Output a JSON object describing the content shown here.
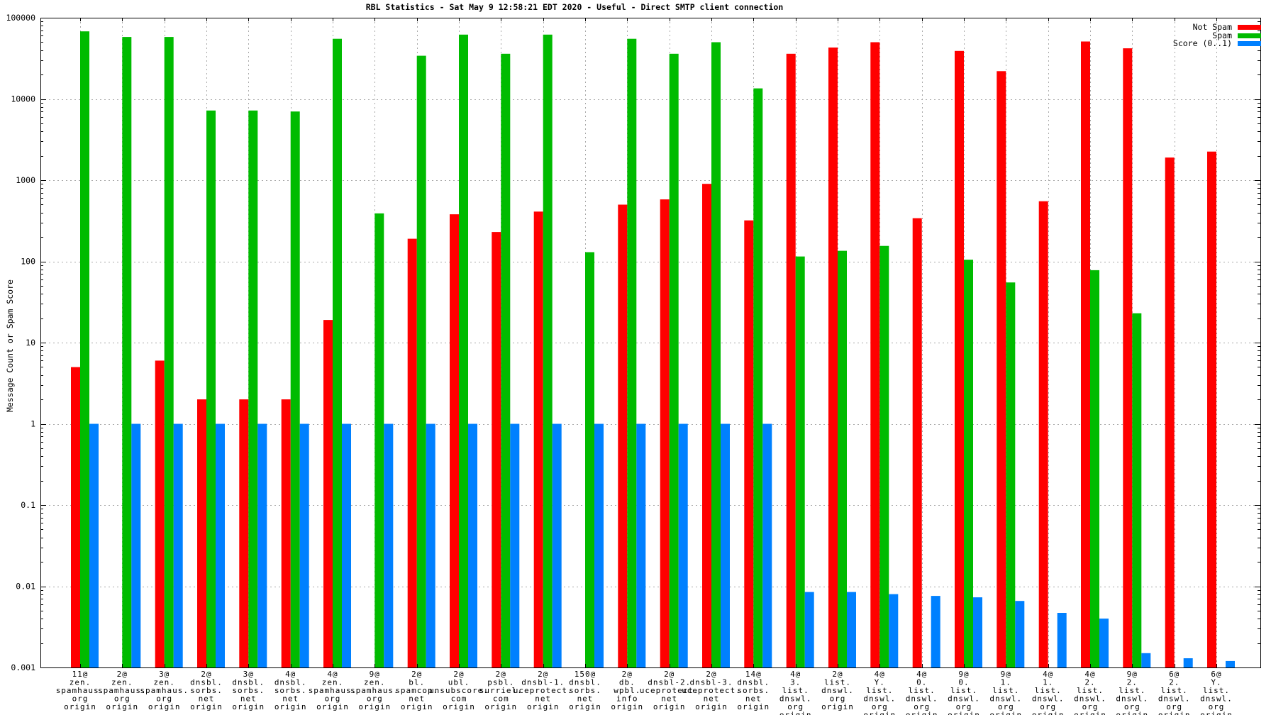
{
  "title": "RBL Statistics - Sat May  9 12:58:21 EDT 2020 - Useful - Direct SMTP client connection",
  "ylabel": "Message Count or Spam Score",
  "legend": {
    "not_spam": "Not Spam",
    "spam": "Spam",
    "score": "Score (0..1)"
  },
  "colors": {
    "not_spam": "#ff0000",
    "spam": "#00bb00",
    "score": "#0080ff",
    "grid": "#a8a8a8",
    "axis": "#000000"
  },
  "chart_data": {
    "type": "bar",
    "scale": "log",
    "ylim": [
      0.001,
      100000
    ],
    "grid": true,
    "legend_position": "top-right",
    "ytick_values": [
      100000,
      10000,
      1000,
      100,
      10,
      1,
      0.1,
      0.01,
      0.001
    ],
    "ytick_labels": [
      "100000",
      "10000",
      "1000",
      "100",
      "10",
      "1",
      "0.1",
      "0.01",
      "0.001"
    ],
    "series_names": [
      "Not Spam",
      "Spam",
      "Score (0..1)"
    ],
    "groups": [
      {
        "label": [
          "11@",
          "zen.",
          "spamhaus.",
          "org",
          "origin"
        ],
        "not_spam": 5,
        "spam": 68000,
        "score": 1
      },
      {
        "label": [
          "2@",
          "zen.",
          "spamhaus.",
          "org",
          "origin"
        ],
        "not_spam": null,
        "spam": 58000,
        "score": 1
      },
      {
        "label": [
          "3@",
          "zen.",
          "spamhaus.",
          "org",
          "origin"
        ],
        "not_spam": 6,
        "spam": 58000,
        "score": 1
      },
      {
        "label": [
          "2@",
          "dnsbl.",
          "sorbs.",
          "net",
          "origin"
        ],
        "not_spam": 2,
        "spam": 7200,
        "score": 1
      },
      {
        "label": [
          "3@",
          "dnsbl.",
          "sorbs.",
          "net",
          "origin"
        ],
        "not_spam": 2,
        "spam": 7200,
        "score": 1
      },
      {
        "label": [
          "4@",
          "dnsbl.",
          "sorbs.",
          "net",
          "origin"
        ],
        "not_spam": 2,
        "spam": 7000,
        "score": 1
      },
      {
        "label": [
          "4@",
          "zen.",
          "spamhaus.",
          "org",
          "origin"
        ],
        "not_spam": 19,
        "spam": 55000,
        "score": 1
      },
      {
        "label": [
          "9@",
          "zen.",
          "spamhaus.",
          "org",
          "origin"
        ],
        "not_spam": null,
        "spam": 390,
        "score": 1
      },
      {
        "label": [
          "2@",
          "bl.",
          "spamcop.",
          "net",
          "origin"
        ],
        "not_spam": 190,
        "spam": 34000,
        "score": 1
      },
      {
        "label": [
          "2@",
          "ubl.",
          "unsubscore.",
          "com",
          "origin"
        ],
        "not_spam": 380,
        "spam": 62000,
        "score": 1
      },
      {
        "label": [
          "2@",
          "psbl.",
          "surriel.",
          "com",
          "origin"
        ],
        "not_spam": 230,
        "spam": 36000,
        "score": 1
      },
      {
        "label": [
          "2@",
          "dnsbl-1.",
          "uceprotect.",
          "net",
          "origin"
        ],
        "not_spam": 410,
        "spam": 62000,
        "score": 1
      },
      {
        "label": [
          "150@",
          "dnsbl.",
          "sorbs.",
          "net",
          "origin"
        ],
        "not_spam": null,
        "spam": 130,
        "score": 1
      },
      {
        "label": [
          "2@",
          "db.",
          "wpbl.",
          "info",
          "origin"
        ],
        "not_spam": 500,
        "spam": 55000,
        "score": 1
      },
      {
        "label": [
          "2@",
          "dnsbl-2.",
          "uceprotect.",
          "net",
          "origin"
        ],
        "not_spam": 580,
        "spam": 36000,
        "score": 1
      },
      {
        "label": [
          "2@",
          "dnsbl-3.",
          "uceprotect.",
          "net",
          "origin"
        ],
        "not_spam": 900,
        "spam": 50000,
        "score": 1
      },
      {
        "label": [
          "14@",
          "dnsbl.",
          "sorbs.",
          "net",
          "origin"
        ],
        "not_spam": 320,
        "spam": 13500,
        "score": 1
      },
      {
        "label": [
          "4@",
          "3.",
          "list.",
          "dnswl.",
          "org",
          "origin"
        ],
        "not_spam": 36000,
        "spam": 115,
        "score": 0.0085
      },
      {
        "label": [
          "2@",
          "list.",
          "dnswl.",
          "org",
          "origin"
        ],
        "not_spam": 43000,
        "spam": 135,
        "score": 0.0085
      },
      {
        "label": [
          "4@",
          "Y.",
          "list.",
          "dnswl.",
          "org",
          "origin"
        ],
        "not_spam": 50000,
        "spam": 155,
        "score": 0.008
      },
      {
        "label": [
          "4@",
          "0.",
          "list.",
          "dnswl.",
          "org",
          "origin"
        ],
        "not_spam": 340,
        "spam": null,
        "score": 0.0076
      },
      {
        "label": [
          "9@",
          "0.",
          "list.",
          "dnswl.",
          "org",
          "origin"
        ],
        "not_spam": 39000,
        "spam": 105,
        "score": 0.0073
      },
      {
        "label": [
          "9@",
          "1.",
          "list.",
          "dnswl.",
          "org",
          "origin"
        ],
        "not_spam": 22000,
        "spam": 55,
        "score": 0.0066
      },
      {
        "label": [
          "4@",
          "1.",
          "list.",
          "dnswl.",
          "org",
          "origin"
        ],
        "not_spam": 550,
        "spam": null,
        "score": 0.0047
      },
      {
        "label": [
          "4@",
          "2.",
          "list.",
          "dnswl.",
          "org",
          "origin"
        ],
        "not_spam": 51000,
        "spam": 78,
        "score": 0.004
      },
      {
        "label": [
          "9@",
          "2.",
          "list.",
          "dnswl.",
          "org",
          "origin"
        ],
        "not_spam": 42000,
        "spam": 23,
        "score": 0.0015
      },
      {
        "label": [
          "6@",
          "2.",
          "list.",
          "dnswl.",
          "org",
          "origin"
        ],
        "not_spam": 1900,
        "spam": null,
        "score": 0.0013
      },
      {
        "label": [
          "6@",
          "Y.",
          "list.",
          "dnswl.",
          "org",
          "origin"
        ],
        "not_spam": 2250,
        "spam": null,
        "score": 0.0012
      }
    ]
  }
}
